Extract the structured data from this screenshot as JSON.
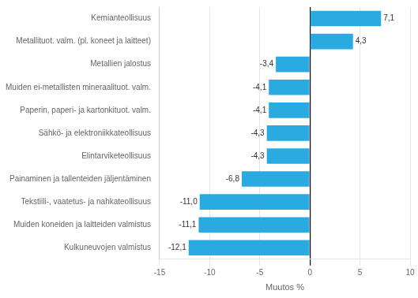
{
  "chart_data": {
    "type": "bar",
    "orientation": "horizontal",
    "categories": [
      "Kulkuneuvojen valmistus",
      "Muiden koneiden ja laitteiden valmistus",
      "Tekstiili-, vaatetus- ja nahkateollisuus",
      "Painaminen ja tallenteiden jäljentäminen",
      "Elintarviketeollisuus",
      "Sähkö- ja elektroniikkateollisuus",
      "Paperin, paperi- ja kartonkituot. valm.",
      "Muiden ei-metallisten mineraalituot. valm.",
      "Metallien jalostus",
      "Metallituot. valm. (pl. koneet ja laitteet)",
      "Kemianteollisuus"
    ],
    "values": [
      -12.1,
      -11.1,
      -11.0,
      -6.8,
      -4.3,
      -4.3,
      -4.1,
      -4.1,
      -3.4,
      4.3,
      7.1
    ],
    "value_labels": [
      "-12,1",
      "-11,1",
      "-11,0",
      "-6,8",
      "-4,3",
      "-4,3",
      "-4,1",
      "-4,1",
      "-3,4",
      "4,3",
      "7,1"
    ],
    "color": "#29abe2",
    "xlim": [
      -15,
      10
    ],
    "xticks": [
      -15,
      -10,
      -5,
      0,
      5,
      10
    ],
    "xlabel": "Muutos %",
    "grid": true,
    "data_labels": true
  }
}
